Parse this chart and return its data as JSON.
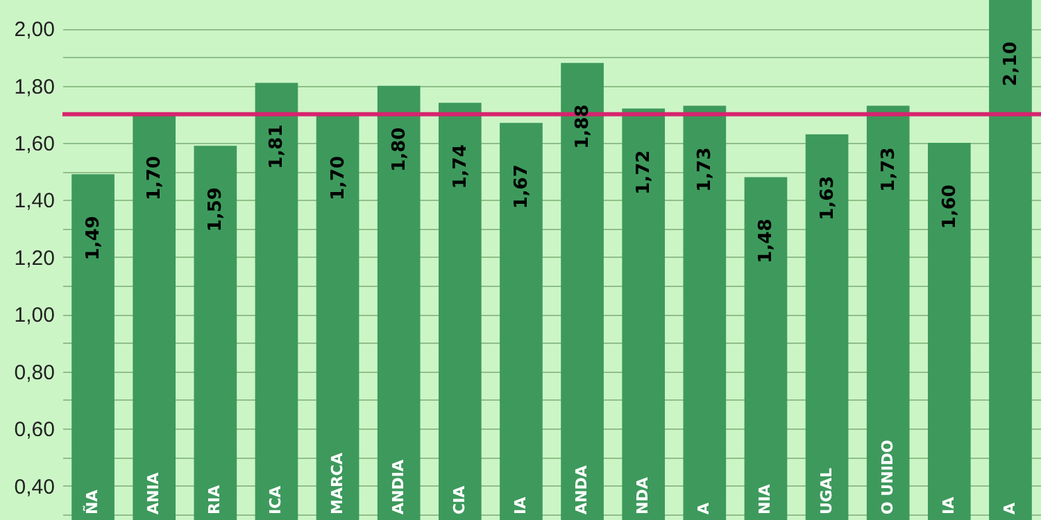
{
  "chart_data": {
    "type": "bar",
    "categories": [
      "ÑA",
      "ANIA",
      "RIA",
      "ICA",
      "MARCA",
      "ANDIA",
      "CIA",
      "IA",
      "ANDA",
      "NDA",
      "A",
      "NIA",
      "UGAL",
      "O UNIDO",
      "IA",
      "A"
    ],
    "values": [
      1.49,
      1.7,
      1.59,
      1.81,
      1.7,
      1.8,
      1.74,
      1.67,
      1.88,
      1.72,
      1.73,
      1.48,
      1.63,
      1.73,
      1.6,
      2.1
    ],
    "value_labels": [
      "1,49",
      "1,70",
      "1,59",
      "1,81",
      "1,70",
      "1,80",
      "1,74",
      "1,67",
      "1,88",
      "1,72",
      "1,73",
      "1,48",
      "1,63",
      "1,73",
      "1,60",
      "2,10"
    ],
    "color": "#3d9a5c",
    "ylim": [
      0.28,
      2.1
    ],
    "yticks": [
      {
        "value": 0.3,
        "label": null
      },
      {
        "value": 0.4,
        "label": "0,40"
      },
      {
        "value": 0.5,
        "label": null
      },
      {
        "value": 0.6,
        "label": "0,60"
      },
      {
        "value": 0.7,
        "label": null
      },
      {
        "value": 0.8,
        "label": "0,80"
      },
      {
        "value": 0.9,
        "label": null
      },
      {
        "value": 1.0,
        "label": "1,00"
      },
      {
        "value": 1.1,
        "label": null
      },
      {
        "value": 1.2,
        "label": "1,20"
      },
      {
        "value": 1.3,
        "label": null
      },
      {
        "value": 1.4,
        "label": "1,40"
      },
      {
        "value": 1.5,
        "label": null
      },
      {
        "value": 1.6,
        "label": "1,60"
      },
      {
        "value": 1.7,
        "label": null
      },
      {
        "value": 1.8,
        "label": "1,80"
      },
      {
        "value": 1.9,
        "label": null
      },
      {
        "value": 2.0,
        "label": "2,00"
      }
    ],
    "ref_lines": [
      {
        "axis": "y",
        "value": 1.7,
        "color": "#d6246e"
      }
    ],
    "grid": "y"
  }
}
